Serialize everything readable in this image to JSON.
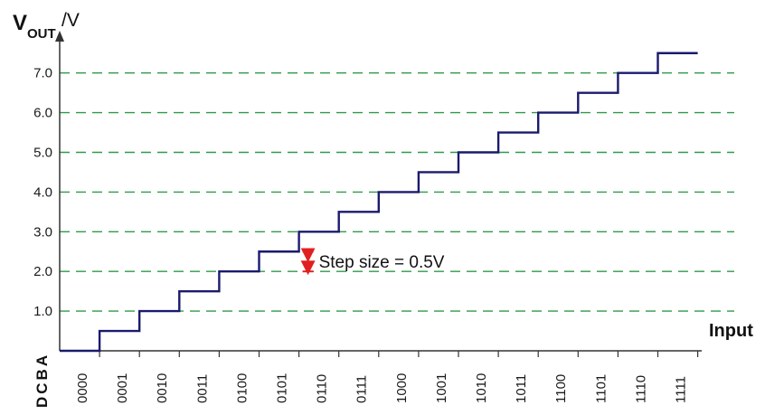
{
  "chart_data": {
    "type": "line",
    "y_title_main": "V",
    "y_title_sub": "OUT",
    "y_unit": "/V",
    "x_title": "Input",
    "bit_order_label": "DCBA",
    "yticks": [
      "1.0",
      "2.0",
      "3.0",
      "4.0",
      "5.0",
      "6.0",
      "7.0"
    ],
    "ytick_values": [
      1,
      2,
      3,
      4,
      5,
      6,
      7
    ],
    "ylim": [
      0,
      8
    ],
    "grid": "horizontal-dashed",
    "categories": [
      "0000",
      "0001",
      "0010",
      "0011",
      "0100",
      "0101",
      "0110",
      "0111",
      "1000",
      "1001",
      "1010",
      "1011",
      "1100",
      "1101",
      "1110",
      "1111"
    ],
    "values": [
      0,
      0.5,
      1.0,
      1.5,
      2.0,
      2.5,
      3.0,
      3.5,
      4.0,
      4.5,
      5.0,
      5.5,
      6.0,
      6.5,
      7.0,
      7.5
    ],
    "annotation": "Step size = 0.5V",
    "step_annotation_range": [
      2.0,
      2.5
    ],
    "colors": {
      "line": "#1a1a6e",
      "grid": "#2e9a4a",
      "axis": "#333333",
      "annotation": "#e02020"
    }
  }
}
